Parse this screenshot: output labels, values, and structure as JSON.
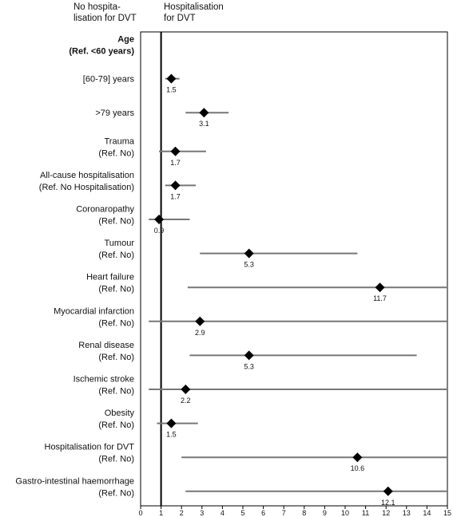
{
  "header": {
    "left_label": "No hospita-\nlisation for DVT",
    "right_label": "Hospitalisation\nfor DVT"
  },
  "chart_data": {
    "type": "forest",
    "xlim": [
      0,
      15
    ],
    "x_ticks": [
      "0",
      "1",
      "2",
      "3",
      "4",
      "5",
      "6",
      "7",
      "8",
      "9",
      "10",
      "11",
      "12",
      "13",
      "14",
      "15"
    ],
    "reference_line": 1,
    "rows": [
      {
        "label": [
          "Age",
          "(Ref. <60 years)"
        ],
        "bold": true,
        "or": null,
        "lo": null,
        "hi": null,
        "value_label": ""
      },
      {
        "label": [
          "[60-79] years"
        ],
        "or": 1.5,
        "lo": 1.2,
        "hi": 1.9,
        "value_label": "1.5"
      },
      {
        "label": [
          ">79 years"
        ],
        "or": 3.1,
        "lo": 2.2,
        "hi": 4.3,
        "value_label": "3.1"
      },
      {
        "label": [
          "Trauma",
          "(Ref. No)"
        ],
        "or": 1.7,
        "lo": 0.9,
        "hi": 3.2,
        "value_label": "1.7"
      },
      {
        "label": [
          "All-cause hospitalisation",
          "(Ref.  No Hospitalisation)"
        ],
        "or": 1.7,
        "lo": 1.2,
        "hi": 2.7,
        "value_label": "1.7"
      },
      {
        "label": [
          "Coronaropathy",
          "(Ref. No)"
        ],
        "or": 0.9,
        "lo": 0.4,
        "hi": 2.4,
        "value_label": "0.9"
      },
      {
        "label": [
          "Tumour",
          "(Ref. No)"
        ],
        "or": 5.3,
        "lo": 2.9,
        "hi": 10.6,
        "value_label": "5.3"
      },
      {
        "label": [
          "Heart failure",
          "(Ref. No)"
        ],
        "or": 11.7,
        "lo": 2.3,
        "hi": 15,
        "value_label": "11.7"
      },
      {
        "label": [
          "Myocardial infarction",
          "(Ref. No)"
        ],
        "or": 2.9,
        "lo": 0.4,
        "hi": 15,
        "value_label": "2.9"
      },
      {
        "label": [
          "Renal disease",
          "(Ref. No)"
        ],
        "or": 5.3,
        "lo": 2.4,
        "hi": 13.5,
        "value_label": "5.3"
      },
      {
        "label": [
          "Ischemic stroke",
          "(Ref. No)"
        ],
        "or": 2.2,
        "lo": 0.4,
        "hi": 15,
        "value_label": "2.2"
      },
      {
        "label": [
          "Obesity",
          "(Ref. No)"
        ],
        "or": 1.5,
        "lo": 0.8,
        "hi": 2.8,
        "value_label": "1.5"
      },
      {
        "label": [
          "Hospitalisation for DVT",
          "(Ref. No)"
        ],
        "or": 10.6,
        "lo": 2.0,
        "hi": 15,
        "value_label": "10.6"
      },
      {
        "label": [
          "Gastro-intestinal haemorrhage",
          "(Ref. No)"
        ],
        "or": 12.1,
        "lo": 2.2,
        "hi": 15,
        "value_label": "12.1"
      }
    ]
  }
}
